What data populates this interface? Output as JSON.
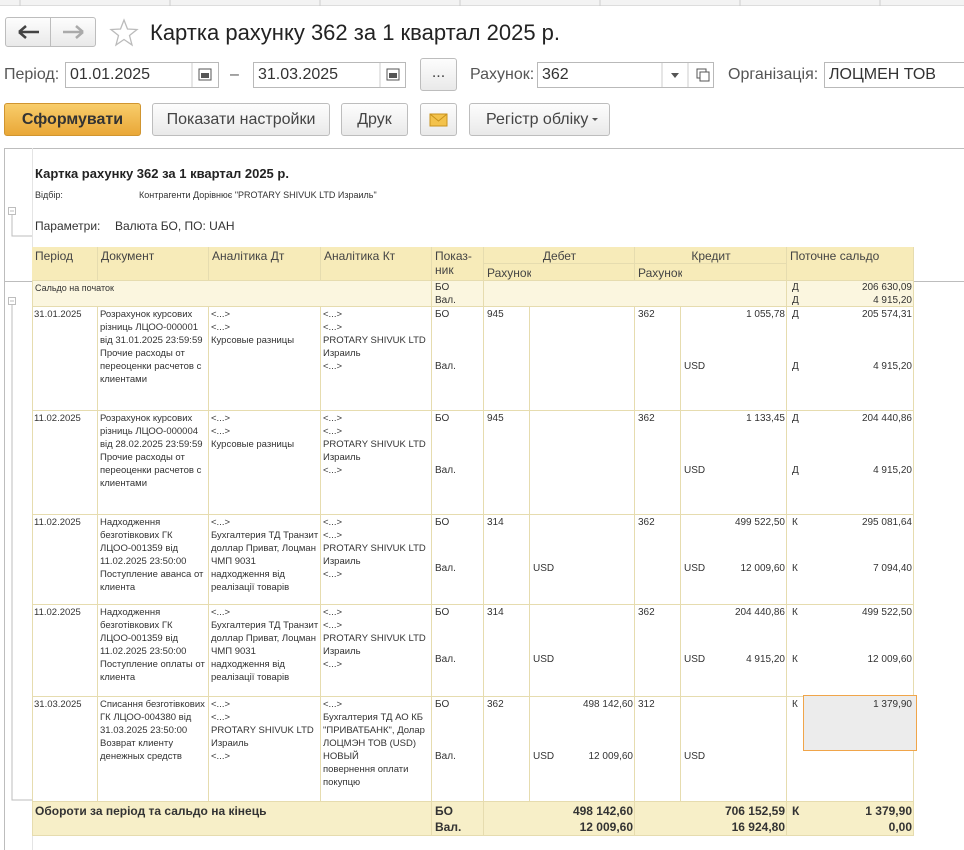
{
  "window": {
    "title": "Картка рахунку 362 за 1 квартал 2025 р."
  },
  "form": {
    "period_label": "Період:",
    "date_from": "01.01.2025",
    "dash": "–",
    "date_to": "31.03.2025",
    "more_button": "...",
    "account_label": "Рахунок:",
    "account": "362",
    "organization_label": "Організація:",
    "organization": "ЛОЦМЕН ТОВ"
  },
  "buttons": {
    "generate": "Сформувати",
    "show_settings": "Показати настройки",
    "print": "Друк",
    "register": "Регістр обліку"
  },
  "report": {
    "title": "Картка рахунку 362 за 1 квартал 2025 р.",
    "filter_label": "Відбір:",
    "filter": "Контрагенти Дорівнює \"PROTARY SHIVUK LTD Израиль\"",
    "params_label": "Параметри:",
    "params": "Валюта БО, ПО: UAH",
    "header": {
      "period": "Період",
      "document": "Документ",
      "analytics_dt": "Аналітика Дт",
      "analytics_kt": "Аналітика Кт",
      "indicator": "Показ-ник",
      "debit": "Дебет",
      "debit_account": "Рахунок",
      "credit": "Кредит",
      "credit_account": "Рахунок",
      "balance": "Поточне сальдо"
    },
    "opening": {
      "label": "Сальдо на початок",
      "bo": {
        "label": "БО",
        "balance_side": "Д",
        "balance": "206 630,09"
      },
      "cur": {
        "label": "Вал.",
        "balance_side": "Д",
        "balance": "4 915,20"
      }
    },
    "rows": [
      {
        "date": "31.01.2025",
        "document": [
          "Розрахунок курсових різниць ЛЦОО-000001 від 31.01.2025 23:59:59",
          "Прочие расходы от переоценки расчетов с клиентами"
        ],
        "analytics_dt": [
          "<...>",
          "<...>",
          "Курсовые разницы"
        ],
        "analytics_kt": [
          "<...>",
          "<...>",
          "PROTARY SHIVUK LTD Израиль",
          "<...>"
        ],
        "bo": {
          "label": "БО",
          "debit_account": "945",
          "credit_account": "362",
          "credit_amount": "1 055,78",
          "balance_side": "Д",
          "balance": "205 574,31"
        },
        "cur": {
          "label": "Вал.",
          "credit_currency": "USD",
          "balance_side": "Д",
          "balance": "4 915,20"
        }
      },
      {
        "date": "11.02.2025",
        "document": [
          "Розрахунок курсових різниць ЛЦОО-000004 від 28.02.2025 23:59:59",
          "Прочие расходы от переоценки расчетов с клиентами"
        ],
        "analytics_dt": [
          "<...>",
          "<...>",
          "Курсовые разницы"
        ],
        "analytics_kt": [
          "<...>",
          "<...>",
          "PROTARY SHIVUK LTD Израиль",
          "<...>"
        ],
        "bo": {
          "label": "БО",
          "debit_account": "945",
          "credit_account": "362",
          "credit_amount": "1 133,45",
          "balance_side": "Д",
          "balance": "204 440,86"
        },
        "cur": {
          "label": "Вал.",
          "credit_currency": "USD",
          "balance_side": "Д",
          "balance": "4 915,20"
        }
      },
      {
        "date": "11.02.2025",
        "document": [
          "Надходження безготівкових ГК ЛЦОО-001359 від 11.02.2025 23:50:00",
          "Поступление аванса от клиента"
        ],
        "analytics_dt": [
          "<...>",
          "Бухгалтерия ТД Транзит доллар Приват, Лоцман ЧМП 9031",
          "надходження від реалізації товарів"
        ],
        "analytics_kt": [
          "<...>",
          "<...>",
          "PROTARY SHIVUK LTD Израиль",
          "<...>"
        ],
        "bo": {
          "label": "БО",
          "debit_account": "314",
          "credit_account": "362",
          "credit_amount": "499 522,50",
          "balance_side": "К",
          "balance": "295 081,64"
        },
        "cur": {
          "label": "Вал.",
          "debit_currency": "USD",
          "credit_currency": "USD",
          "credit_amount": "12 009,60",
          "balance_side": "К",
          "balance": "7 094,40"
        }
      },
      {
        "date": "11.02.2025",
        "document": [
          "Надходження безготівкових ГК ЛЦОО-001359 від 11.02.2025 23:50:00",
          "Поступление оплаты от клиента"
        ],
        "analytics_dt": [
          "<...>",
          "Бухгалтерия ТД Транзит доллар Приват, Лоцман ЧМП 9031",
          "надходження від реалізації товарів"
        ],
        "analytics_kt": [
          "<...>",
          "<...>",
          "PROTARY SHIVUK LTD Израиль",
          "<...>"
        ],
        "bo": {
          "label": "БО",
          "debit_account": "314",
          "credit_account": "362",
          "credit_amount": "204 440,86",
          "balance_side": "К",
          "balance": "499 522,50"
        },
        "cur": {
          "label": "Вал.",
          "debit_currency": "USD",
          "credit_currency": "USD",
          "credit_amount": "4 915,20",
          "balance_side": "К",
          "balance": "12 009,60"
        }
      },
      {
        "date": "31.03.2025",
        "document": [
          "Списання безготівкових ГК ЛЦОО-004380 від 31.03.2025 23:50:00",
          "Возврат клиенту денежных средств"
        ],
        "analytics_dt": [
          "<...>",
          "<...>",
          "PROTARY SHIVUK LTD Израиль",
          "<...>"
        ],
        "analytics_kt": [
          "<...>",
          "Бухгалтерия ТД АО КБ \"ПРИВАТБАНК\", Долар ЛОЦМЭН ТОВ (USD) НОВЫЙ",
          "повернення оплати покупцю"
        ],
        "bo": {
          "label": "БО",
          "debit_account": "362",
          "debit_amount": "498 142,60",
          "credit_account": "312",
          "balance_side": "К",
          "balance": "1 379,90"
        },
        "cur": {
          "label": "Вал.",
          "debit_currency": "USD",
          "debit_amount": "12 009,60",
          "credit_currency": "USD"
        }
      }
    ],
    "totals": {
      "label": "Обороти за період та сальдо на кінець",
      "bo": {
        "label": "БО",
        "debit_amount": "498 142,60",
        "credit_amount": "706 152,59",
        "balance_side": "К",
        "balance": "1 379,90"
      },
      "cur": {
        "label": "Вал.",
        "debit_amount": "12 009,60",
        "credit_amount": "16 924,80",
        "balance": "0,00"
      }
    }
  }
}
